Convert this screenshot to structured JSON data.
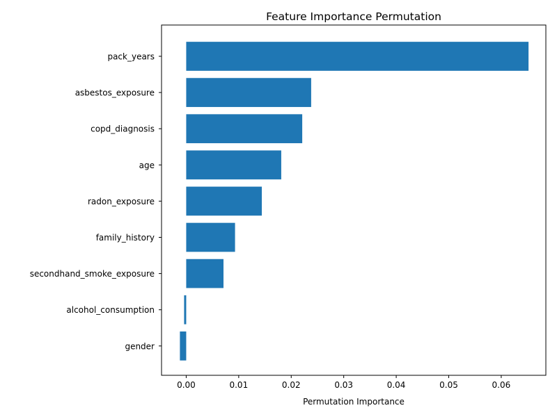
{
  "chart_data": {
    "type": "bar",
    "orientation": "horizontal",
    "title": "Feature Importance Permutation",
    "xlabel": "Permutation Importance",
    "ylabel": "",
    "xlim": [
      -0.0047,
      0.0685
    ],
    "xticks": [
      0.0,
      0.01,
      0.02,
      0.03,
      0.04,
      0.05,
      0.06
    ],
    "xtick_labels": [
      "0.00",
      "0.01",
      "0.02",
      "0.03",
      "0.04",
      "0.05",
      "0.06"
    ],
    "categories": [
      "pack_years",
      "asbestos_exposure",
      "copd_diagnosis",
      "age",
      "radon_exposure",
      "family_history",
      "secondhand_smoke_exposure",
      "alcohol_consumption",
      "gender"
    ],
    "values": [
      0.0652,
      0.0238,
      0.0221,
      0.0181,
      0.0144,
      0.0093,
      0.0071,
      -0.0004,
      -0.0012
    ],
    "bar_color": "#1f77b4",
    "grid": false,
    "legend": "none"
  }
}
